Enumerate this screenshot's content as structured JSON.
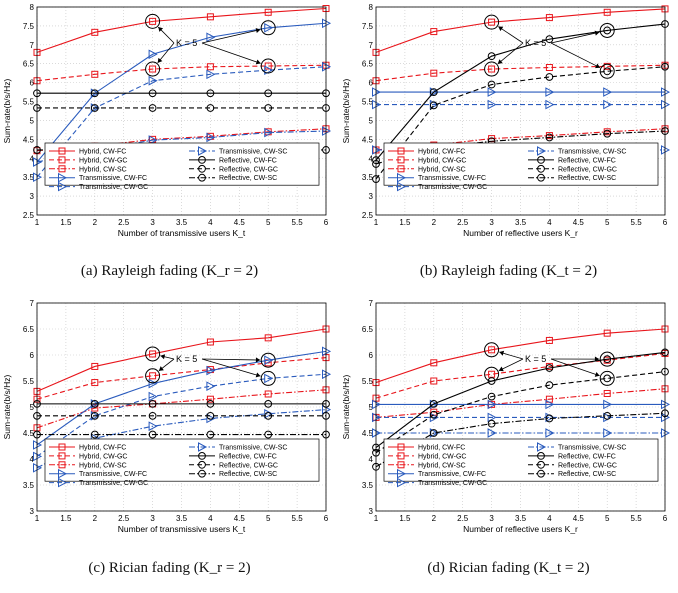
{
  "captions": [
    "(a) Rayleigh fading (K_r = 2)",
    "(b) Rayleigh fading (K_t = 2)",
    "(c) Rician fading (K_r = 2)",
    "(d) Rician fading (K_t = 2)"
  ],
  "legend_labels": [
    "Hybrid, CW-FC",
    "Hybrid, CW-GC",
    "Hybrid, CW-SC",
    "Transmissive, CW-FC",
    "Transmissive, CW-GC",
    "Transmissive, CW-SC",
    "Reflective, CW-FC",
    "Reflective, CW-GC",
    "Reflective, CW-SC"
  ],
  "colors": {
    "hybrid": "#e8151b",
    "transmissive": "#2a5bbd",
    "reflective": "#000000"
  },
  "chart_data": [
    {
      "type": "line",
      "x": [
        1,
        2,
        3,
        4,
        5,
        6
      ],
      "xlabel": "Number of transmissive users  K_t",
      "ylabel": "Sum-rate(b/s/Hz)",
      "xlim": [
        1,
        6
      ],
      "ylim": [
        2.5,
        8
      ],
      "yticks": [
        "2.5",
        "3",
        "3.5",
        "4",
        "4.5",
        "5",
        "5.5",
        "6",
        "6.5",
        "7",
        "7.5",
        "8"
      ],
      "xticks": [
        "1",
        "1.5",
        "2",
        "2.5",
        "3",
        "3.5",
        "4",
        "4.5",
        "5",
        "5.5",
        "6"
      ],
      "annotation": "K = 5",
      "grid": true,
      "series": [
        {
          "name": "Hybrid, CW-FC",
          "group": "hybrid",
          "style": "solid",
          "marker": "square",
          "values": [
            6.8,
            7.33,
            7.62,
            7.74,
            7.86,
            7.96
          ]
        },
        {
          "name": "Hybrid, CW-GC",
          "group": "hybrid",
          "style": "dash",
          "marker": "square",
          "values": [
            6.05,
            6.22,
            6.36,
            6.42,
            6.44,
            6.46
          ]
        },
        {
          "name": "Hybrid, CW-SC",
          "group": "hybrid",
          "style": "dashdot",
          "marker": "square",
          "values": [
            4.2,
            4.32,
            4.5,
            4.58,
            4.7,
            4.78
          ]
        },
        {
          "name": "Transmissive, CW-FC",
          "group": "transmissive",
          "style": "solid",
          "marker": "right",
          "values": [
            3.9,
            5.72,
            6.75,
            7.2,
            7.45,
            7.57
          ]
        },
        {
          "name": "Transmissive, CW-GC",
          "group": "transmissive",
          "style": "dash",
          "marker": "right",
          "values": [
            3.5,
            5.33,
            6.05,
            6.22,
            6.33,
            6.42
          ]
        },
        {
          "name": "Transmissive, CW-SC",
          "group": "transmissive",
          "style": "dashdot",
          "marker": "right",
          "values": [
            3.9,
            4.22,
            4.48,
            4.55,
            4.68,
            4.72
          ]
        },
        {
          "name": "Reflective, CW-FC",
          "group": "reflective",
          "style": "solid",
          "marker": "circle",
          "values": [
            5.72,
            5.72,
            5.72,
            5.72,
            5.72,
            5.72
          ]
        },
        {
          "name": "Reflective, CW-GC",
          "group": "reflective",
          "style": "dash",
          "marker": "circle",
          "values": [
            5.33,
            5.33,
            5.33,
            5.33,
            5.33,
            5.33
          ]
        },
        {
          "name": "Reflective, CW-SC",
          "group": "reflective",
          "style": "dashdot",
          "marker": "circle",
          "values": [
            4.22,
            4.22,
            4.22,
            4.22,
            4.22,
            4.22
          ]
        }
      ]
    },
    {
      "type": "line",
      "x": [
        1,
        2,
        3,
        4,
        5,
        6
      ],
      "xlabel": "Number of reflective users  K_r",
      "ylabel": "Sum-rate(b/s/Hz)",
      "xlim": [
        1,
        6
      ],
      "ylim": [
        2.5,
        8
      ],
      "yticks": [
        "2.5",
        "3",
        "3.5",
        "4",
        "4.5",
        "5",
        "5.5",
        "6",
        "6.5",
        "7",
        "7.5",
        "8"
      ],
      "xticks": [
        "1",
        "1.5",
        "2",
        "2.5",
        "3",
        "3.5",
        "4",
        "4.5",
        "5",
        "5.5",
        "6"
      ],
      "annotation": "K = 5",
      "grid": true,
      "series": [
        {
          "name": "Hybrid, CW-FC",
          "group": "hybrid",
          "style": "solid",
          "marker": "square",
          "values": [
            6.8,
            7.35,
            7.6,
            7.72,
            7.86,
            7.95
          ]
        },
        {
          "name": "Hybrid, CW-GC",
          "group": "hybrid",
          "style": "dash",
          "marker": "square",
          "values": [
            6.05,
            6.25,
            6.36,
            6.4,
            6.43,
            6.46
          ]
        },
        {
          "name": "Hybrid, CW-SC",
          "group": "hybrid",
          "style": "dashdot",
          "marker": "square",
          "values": [
            4.22,
            4.35,
            4.52,
            4.6,
            4.7,
            4.78
          ]
        },
        {
          "name": "Transmissive, CW-FC",
          "group": "transmissive",
          "style": "solid",
          "marker": "right",
          "values": [
            5.75,
            5.75,
            5.75,
            5.75,
            5.75,
            5.75
          ]
        },
        {
          "name": "Transmissive, CW-GC",
          "group": "transmissive",
          "style": "dash",
          "marker": "right",
          "values": [
            5.42,
            5.42,
            5.42,
            5.42,
            5.42,
            5.42
          ]
        },
        {
          "name": "Transmissive, CW-SC",
          "group": "transmissive",
          "style": "dashdot",
          "marker": "right",
          "values": [
            4.22,
            4.22,
            4.22,
            4.22,
            4.22,
            4.22
          ]
        },
        {
          "name": "Reflective, CW-FC",
          "group": "reflective",
          "style": "solid",
          "marker": "circle",
          "values": [
            3.95,
            5.75,
            6.7,
            7.15,
            7.38,
            7.55
          ]
        },
        {
          "name": "Reflective, CW-GC",
          "group": "reflective",
          "style": "dash",
          "marker": "circle",
          "values": [
            3.45,
            5.4,
            5.95,
            6.15,
            6.3,
            6.42
          ]
        },
        {
          "name": "Reflective, CW-SC",
          "group": "reflective",
          "style": "dashdot",
          "marker": "circle",
          "values": [
            3.85,
            4.28,
            4.45,
            4.55,
            4.65,
            4.72
          ]
        }
      ]
    },
    {
      "type": "line",
      "x": [
        1,
        2,
        3,
        4,
        5,
        6
      ],
      "xlabel": "Number of transmissive users  K_t",
      "ylabel": "Sum-rate(b/s/Hz)",
      "xlim": [
        1,
        6
      ],
      "ylim": [
        3,
        7
      ],
      "yticks": [
        "3",
        "3.5",
        "4",
        "4.5",
        "5",
        "5.5",
        "6",
        "6.5",
        "7"
      ],
      "xticks": [
        "1",
        "1.5",
        "2",
        "2.5",
        "3",
        "3.5",
        "4",
        "4.5",
        "5",
        "5.5",
        "6"
      ],
      "annotation": "K = 5",
      "grid": true,
      "series": [
        {
          "name": "Hybrid, CW-FC",
          "group": "hybrid",
          "style": "solid",
          "marker": "square",
          "values": [
            5.3,
            5.78,
            6.02,
            6.25,
            6.33,
            6.5
          ]
        },
        {
          "name": "Hybrid, CW-GC",
          "group": "hybrid",
          "style": "dash",
          "marker": "square",
          "values": [
            5.15,
            5.47,
            5.6,
            5.72,
            5.85,
            5.95
          ]
        },
        {
          "name": "Hybrid, CW-SC",
          "group": "hybrid",
          "style": "dashdot",
          "marker": "square",
          "values": [
            4.6,
            4.98,
            5.06,
            5.15,
            5.25,
            5.33
          ]
        },
        {
          "name": "Transmissive, CW-FC",
          "group": "transmissive",
          "style": "solid",
          "marker": "right",
          "values": [
            4.27,
            5.06,
            5.45,
            5.7,
            5.9,
            6.07
          ]
        },
        {
          "name": "Transmissive, CW-GC",
          "group": "transmissive",
          "style": "dash",
          "marker": "right",
          "values": [
            4.05,
            4.83,
            5.2,
            5.4,
            5.55,
            5.63
          ]
        },
        {
          "name": "Transmissive, CW-SC",
          "group": "transmissive",
          "style": "dashdot",
          "marker": "right",
          "values": [
            3.83,
            4.4,
            4.63,
            4.78,
            4.87,
            4.95
          ]
        },
        {
          "name": "Reflective, CW-FC",
          "group": "reflective",
          "style": "solid",
          "marker": "circle",
          "values": [
            5.06,
            5.06,
            5.06,
            5.06,
            5.06,
            5.06
          ]
        },
        {
          "name": "Reflective, CW-GC",
          "group": "reflective",
          "style": "dash",
          "marker": "circle",
          "values": [
            4.83,
            4.83,
            4.83,
            4.83,
            4.83,
            4.83
          ]
        },
        {
          "name": "Reflective, CW-SC",
          "group": "reflective",
          "style": "dashdot",
          "marker": "circle",
          "values": [
            4.47,
            4.47,
            4.47,
            4.47,
            4.47,
            4.47
          ]
        }
      ]
    },
    {
      "type": "line",
      "x": [
        1,
        2,
        3,
        4,
        5,
        6
      ],
      "xlabel": "Number of reflective users  K_r",
      "ylabel": "Sum-rate(b/s/Hz)",
      "xlim": [
        1,
        6
      ],
      "ylim": [
        3,
        7
      ],
      "yticks": [
        "3",
        "3.5",
        "4",
        "4.5",
        "5",
        "5.5",
        "6",
        "6.5",
        "7"
      ],
      "xticks": [
        "1",
        "1.5",
        "2",
        "2.5",
        "3",
        "3.5",
        "4",
        "4.5",
        "5",
        "5.5",
        "6"
      ],
      "annotation": "K = 5",
      "grid": true,
      "series": [
        {
          "name": "Hybrid, CW-FC",
          "group": "hybrid",
          "style": "solid",
          "marker": "square",
          "values": [
            5.47,
            5.85,
            6.1,
            6.28,
            6.42,
            6.5
          ]
        },
        {
          "name": "Hybrid, CW-GC",
          "group": "hybrid",
          "style": "dash",
          "marker": "square",
          "values": [
            5.17,
            5.5,
            5.63,
            5.78,
            5.9,
            6.03
          ]
        },
        {
          "name": "Hybrid, CW-SC",
          "group": "hybrid",
          "style": "dashdot",
          "marker": "square",
          "values": [
            4.8,
            4.9,
            5.05,
            5.15,
            5.26,
            5.35
          ]
        },
        {
          "name": "Transmissive, CW-FC",
          "group": "transmissive",
          "style": "solid",
          "marker": "right",
          "values": [
            5.05,
            5.05,
            5.05,
            5.05,
            5.05,
            5.05
          ]
        },
        {
          "name": "Transmissive, CW-GC",
          "group": "transmissive",
          "style": "dash",
          "marker": "right",
          "values": [
            4.8,
            4.8,
            4.8,
            4.8,
            4.8,
            4.8
          ]
        },
        {
          "name": "Transmissive, CW-SC",
          "group": "transmissive",
          "style": "dashdot",
          "marker": "right",
          "values": [
            4.5,
            4.5,
            4.5,
            4.5,
            4.5,
            4.5
          ]
        },
        {
          "name": "Reflective, CW-FC",
          "group": "reflective",
          "style": "solid",
          "marker": "circle",
          "values": [
            4.22,
            5.06,
            5.5,
            5.75,
            5.92,
            6.05
          ]
        },
        {
          "name": "Reflective, CW-GC",
          "group": "reflective",
          "style": "dash",
          "marker": "circle",
          "values": [
            4.12,
            4.85,
            5.2,
            5.42,
            5.55,
            5.68
          ]
        },
        {
          "name": "Reflective, CW-SC",
          "group": "reflective",
          "style": "dashdot",
          "marker": "circle",
          "values": [
            3.85,
            4.5,
            4.68,
            4.78,
            4.83,
            4.88
          ]
        }
      ]
    }
  ]
}
